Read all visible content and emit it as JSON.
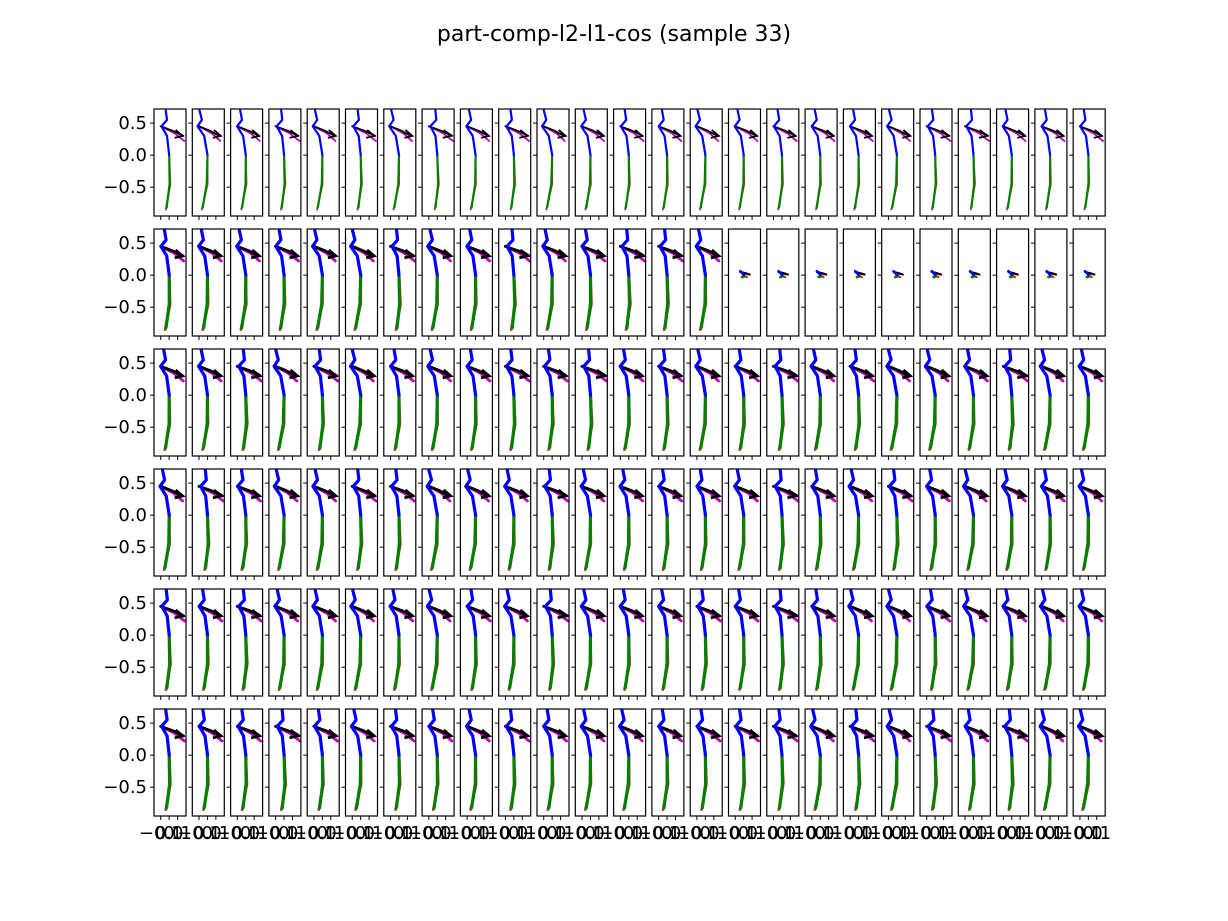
{
  "chart_data": {
    "type": "line",
    "title": "part-comp-l2-l1-cos (sample 33)",
    "grid": false,
    "layout": {
      "rows": 6,
      "cols": 25
    },
    "ylim": [
      -0.95,
      0.72
    ],
    "xlim": [
      -0.18,
      0.2
    ],
    "yticks": [
      0.5,
      0.0,
      -0.5
    ],
    "ytick_labels": [
      "0.5",
      "0.0",
      "−0.5"
    ],
    "xticks": [
      -0.1,
      0.0,
      0.1
    ],
    "xtick_labels": [
      "−0.1",
      "0.0",
      "0.1"
    ],
    "colors": {
      "right_leg": "#d62728",
      "left_leg": "#008000",
      "spine": "#0000ff",
      "arm_a": "#000000",
      "arm_b": "#bf00bf"
    },
    "pose": {
      "spine": [
        [
          0.0,
          0.0
        ],
        [
          -0.03,
          0.3
        ],
        [
          -0.1,
          0.45
        ],
        [
          -0.04,
          0.55
        ],
        [
          -0.06,
          0.7
        ]
      ],
      "arm_a": [
        [
          -0.1,
          0.45
        ],
        [
          0.04,
          0.38
        ],
        [
          0.16,
          0.3
        ],
        [
          0.08,
          0.36
        ]
      ],
      "arm_b": [
        [
          -0.1,
          0.45
        ],
        [
          0.06,
          0.34
        ],
        [
          0.17,
          0.22
        ]
      ],
      "right_leg": [
        [
          0.0,
          0.0
        ],
        [
          0.01,
          -0.45
        ],
        [
          -0.05,
          -0.85
        ]
      ],
      "left_leg": [
        [
          0.0,
          0.0
        ],
        [
          0.0,
          -0.45
        ],
        [
          -0.04,
          -0.82
        ]
      ]
    },
    "collapsed_pose": {
      "spine": [
        [
          0.0,
          0.0
        ],
        [
          -0.02,
          0.04
        ],
        [
          -0.04,
          0.06
        ]
      ],
      "arm_a": [
        [
          -0.04,
          0.05
        ],
        [
          0.02,
          0.03
        ],
        [
          0.07,
          0.01
        ]
      ],
      "arm_b": [
        [
          -0.03,
          0.04
        ],
        [
          0.04,
          0.02
        ]
      ],
      "right_leg": [
        [
          0.0,
          0.0
        ],
        [
          0.02,
          -0.02
        ],
        [
          0.04,
          -0.03
        ]
      ],
      "left_leg": [
        [
          0.0,
          0.0
        ],
        [
          0.01,
          -0.02
        ],
        [
          -0.02,
          -0.03
        ]
      ]
    },
    "row_line_weight": [
      1,
      2,
      2,
      2,
      2,
      2
    ],
    "collapsed_panels": {
      "row": 1,
      "from_col": 15
    }
  }
}
